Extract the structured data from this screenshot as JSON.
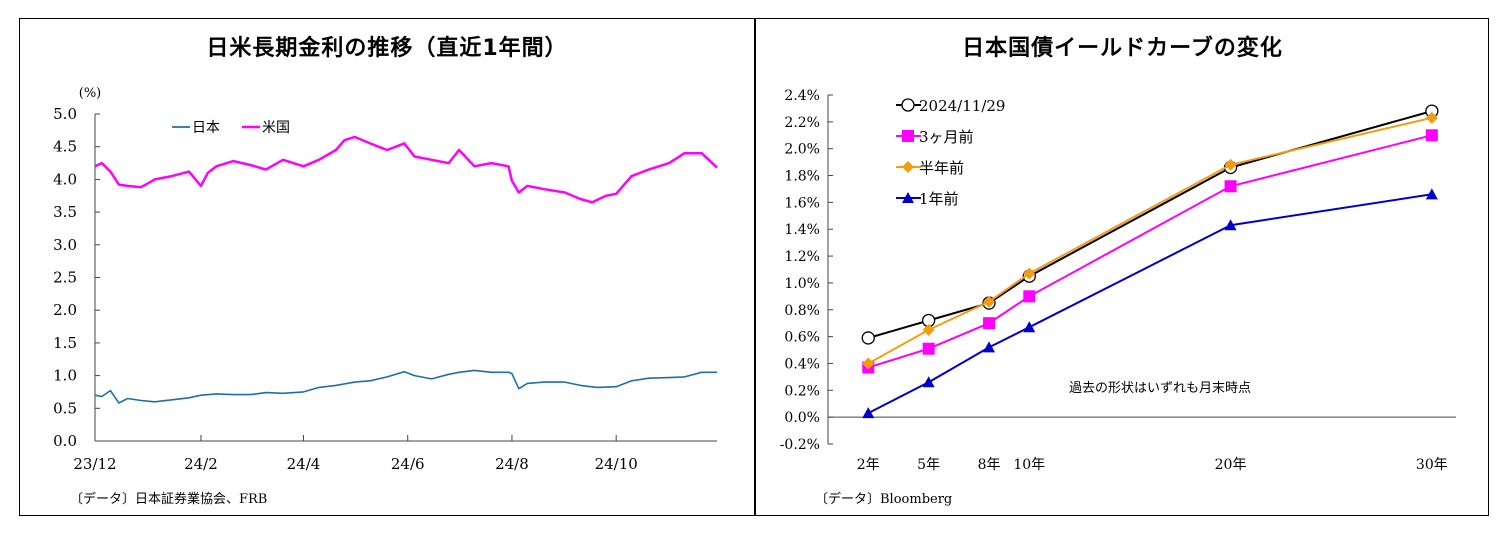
{
  "chart_data": [
    {
      "type": "line",
      "title": "日米長期金利の推移（直近1年間）",
      "ylabel": "(%)",
      "ylim": [
        0,
        5
      ],
      "yticks": [
        "0.0",
        "0.5",
        "1.0",
        "1.5",
        "2.0",
        "2.5",
        "3.0",
        "3.5",
        "4.0",
        "4.5",
        "5.0"
      ],
      "xticks": [
        "23/12",
        "24/2",
        "24/4",
        "24/6",
        "24/8",
        "24/10"
      ],
      "legend_position": "top-left",
      "series": [
        {
          "name": "日本",
          "color": "#1f6fa8",
          "x": [
            "2023-12-01",
            "2023-12-05",
            "2023-12-10",
            "2023-12-15",
            "2023-12-20",
            "2023-12-28",
            "2024-01-05",
            "2024-01-15",
            "2024-01-25",
            "2024-02-01",
            "2024-02-10",
            "2024-02-20",
            "2024-03-01",
            "2024-03-10",
            "2024-03-20",
            "2024-04-01",
            "2024-04-10",
            "2024-04-20",
            "2024-05-01",
            "2024-05-10",
            "2024-05-20",
            "2024-05-30",
            "2024-06-05",
            "2024-06-15",
            "2024-06-25",
            "2024-07-01",
            "2024-07-10",
            "2024-07-20",
            "2024-07-30",
            "2024-08-01",
            "2024-08-05",
            "2024-08-10",
            "2024-08-20",
            "2024-09-01",
            "2024-09-10",
            "2024-09-20",
            "2024-10-01",
            "2024-10-10",
            "2024-10-20",
            "2024-11-01",
            "2024-11-10",
            "2024-11-20",
            "2024-11-29"
          ],
          "y": [
            0.7,
            0.68,
            0.77,
            0.58,
            0.65,
            0.62,
            0.6,
            0.63,
            0.66,
            0.7,
            0.72,
            0.71,
            0.71,
            0.74,
            0.73,
            0.75,
            0.82,
            0.85,
            0.9,
            0.92,
            0.98,
            1.06,
            1.0,
            0.95,
            1.02,
            1.05,
            1.08,
            1.05,
            1.05,
            1.03,
            0.8,
            0.88,
            0.9,
            0.9,
            0.85,
            0.82,
            0.83,
            0.92,
            0.96,
            0.97,
            0.98,
            1.05,
            1.05
          ]
        },
        {
          "name": "米国",
          "color": "#ff00ff",
          "x": [
            "2023-12-01",
            "2023-12-05",
            "2023-12-10",
            "2023-12-15",
            "2023-12-20",
            "2023-12-28",
            "2024-01-05",
            "2024-01-15",
            "2024-01-25",
            "2024-02-01",
            "2024-02-05",
            "2024-02-10",
            "2024-02-20",
            "2024-03-01",
            "2024-03-10",
            "2024-03-20",
            "2024-04-01",
            "2024-04-10",
            "2024-04-20",
            "2024-04-25",
            "2024-05-01",
            "2024-05-10",
            "2024-05-20",
            "2024-05-30",
            "2024-06-05",
            "2024-06-15",
            "2024-06-25",
            "2024-07-01",
            "2024-07-10",
            "2024-07-20",
            "2024-07-30",
            "2024-08-01",
            "2024-08-05",
            "2024-08-10",
            "2024-08-20",
            "2024-09-01",
            "2024-09-10",
            "2024-09-17",
            "2024-09-25",
            "2024-10-01",
            "2024-10-10",
            "2024-10-20",
            "2024-11-01",
            "2024-11-10",
            "2024-11-20",
            "2024-11-29"
          ],
          "y": [
            4.2,
            4.25,
            4.12,
            3.92,
            3.9,
            3.88,
            4.0,
            4.05,
            4.12,
            3.9,
            4.1,
            4.2,
            4.28,
            4.22,
            4.15,
            4.3,
            4.2,
            4.3,
            4.45,
            4.6,
            4.65,
            4.55,
            4.45,
            4.55,
            4.35,
            4.3,
            4.25,
            4.45,
            4.2,
            4.25,
            4.2,
            3.98,
            3.8,
            3.9,
            3.85,
            3.8,
            3.7,
            3.65,
            3.75,
            3.78,
            4.05,
            4.15,
            4.25,
            4.4,
            4.4,
            4.18
          ]
        }
      ],
      "source": "〔データ〕日本証券業協会、FRB"
    },
    {
      "type": "line",
      "title": "日本国債イールドカーブの変化",
      "categories": [
        "2年",
        "5年",
        "8年",
        "10年",
        "20年",
        "30年"
      ],
      "x_years": [
        2,
        5,
        8,
        10,
        20,
        30
      ],
      "ylim": [
        -0.2,
        2.4
      ],
      "yticks": [
        "-0.2%",
        "0.0%",
        "0.2%",
        "0.4%",
        "0.6%",
        "0.8%",
        "1.0%",
        "1.2%",
        "1.4%",
        "1.6%",
        "1.8%",
        "2.0%",
        "2.2%",
        "2.4%"
      ],
      "legend_position": "top-left",
      "annotation": "過去の形状はいずれも月末時点",
      "series": [
        {
          "name": "2024/11/29",
          "color": "#000000",
          "marker": "circle",
          "values": [
            0.59,
            0.72,
            0.85,
            1.05,
            1.86,
            2.28
          ]
        },
        {
          "name": "3ヶ月前",
          "color": "#ff00ff",
          "marker": "square",
          "values": [
            0.37,
            0.51,
            0.7,
            0.9,
            1.72,
            2.1
          ]
        },
        {
          "name": "半年前",
          "color": "#f39c12",
          "marker": "diamond",
          "values": [
            0.4,
            0.65,
            0.86,
            1.07,
            1.88,
            2.23
          ]
        },
        {
          "name": "1年前",
          "color": "#0000cc",
          "marker": "triangle",
          "values": [
            0.03,
            0.26,
            0.52,
            0.67,
            1.43,
            1.66
          ]
        }
      ],
      "source": "〔データ〕Bloomberg"
    }
  ]
}
